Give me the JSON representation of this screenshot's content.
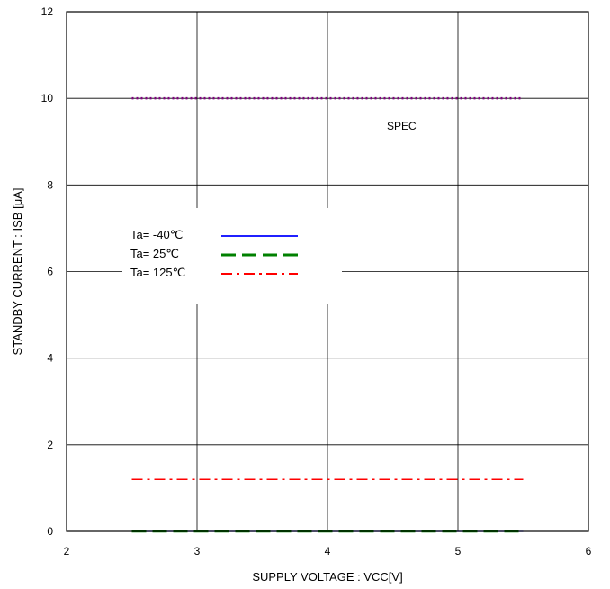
{
  "chart_data": {
    "type": "line",
    "xlabel": "SUPPLY VOLTAGE : VCC[V]",
    "ylabel": "STANDBY CURRENT : ISB  [μA]",
    "xlim": [
      2,
      6
    ],
    "ylim": [
      0,
      12
    ],
    "xticks": [
      "2",
      "3",
      "4",
      "5",
      "6"
    ],
    "yticks": [
      "0",
      "2",
      "4",
      "6",
      "8",
      "10",
      "12"
    ],
    "grid": true,
    "legend_position": "center-left",
    "series": [
      {
        "name": "Ta= -40℃",
        "color": "#0000ff",
        "style": "solid",
        "x": [
          2.5,
          5.5
        ],
        "y": [
          0,
          0
        ]
      },
      {
        "name": "Ta=  25℃",
        "color": "#008000",
        "style": "dashed",
        "x": [
          2.5,
          5.5
        ],
        "y": [
          0,
          0
        ]
      },
      {
        "name": "Ta= 125℃",
        "color": "#ff0000",
        "style": "dashdot",
        "x": [
          2.5,
          5.5
        ],
        "y": [
          1.2,
          1.2
        ]
      },
      {
        "name": "SPEC",
        "color": "#800080",
        "style": "dotted",
        "x": [
          2.5,
          5.5
        ],
        "y": [
          10,
          10
        ]
      }
    ],
    "annotations": [
      {
        "text": "SPEC",
        "color": "#800080"
      }
    ]
  }
}
